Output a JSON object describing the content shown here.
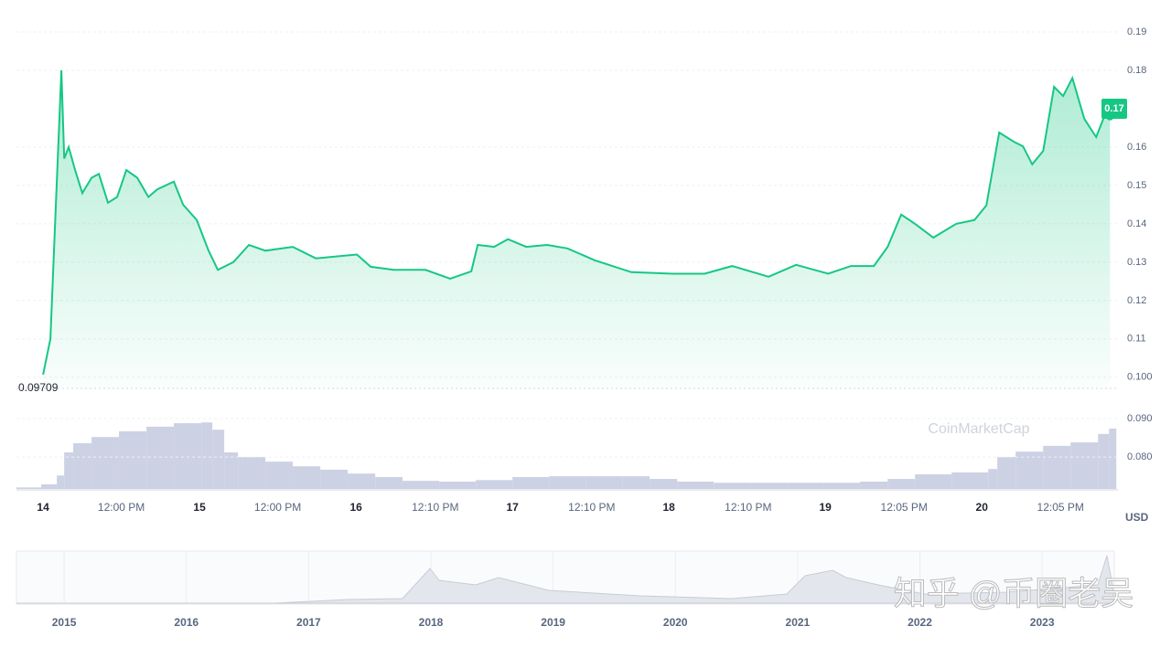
{
  "chart_data": [
    {
      "type": "line",
      "color": "#16c784",
      "x": [
        14.0,
        14.047,
        14.088,
        14.117,
        14.135,
        14.164,
        14.205,
        14.251,
        14.31,
        14.357,
        14.415,
        14.474,
        14.532,
        14.602,
        14.673,
        14.731,
        14.836,
        14.895,
        14.982,
        15.058,
        15.117,
        15.216,
        15.316,
        15.421,
        15.596,
        15.743,
        16.006,
        16.094,
        16.24,
        16.444,
        16.602,
        16.737,
        16.778,
        16.883,
        16.971,
        17.088,
        17.222,
        17.351,
        17.526,
        17.76,
        18.023,
        18.228,
        18.404,
        18.637,
        18.813,
        19.018,
        19.164,
        19.31,
        19.398,
        19.485,
        19.573,
        19.69,
        19.836,
        19.953,
        20.029,
        20.111,
        20.205,
        20.263,
        20.322,
        20.392,
        20.462,
        20.52,
        20.579,
        20.655,
        20.731,
        20.789,
        20.819
      ],
      "values": [
        0.1007,
        0.11,
        0.151,
        0.18,
        0.157,
        0.16,
        0.154,
        0.148,
        0.152,
        0.153,
        0.1455,
        0.147,
        0.154,
        0.152,
        0.147,
        0.149,
        0.151,
        0.145,
        0.141,
        0.133,
        0.128,
        0.13,
        0.1345,
        0.133,
        0.134,
        0.131,
        0.132,
        0.1288,
        0.128,
        0.128,
        0.1257,
        0.1276,
        0.1345,
        0.134,
        0.136,
        0.134,
        0.1345,
        0.1336,
        0.1305,
        0.1274,
        0.127,
        0.127,
        0.129,
        0.1262,
        0.1293,
        0.127,
        0.129,
        0.129,
        0.134,
        0.1424,
        0.14,
        0.1364,
        0.14,
        0.141,
        0.1448,
        0.1638,
        0.1614,
        0.1602,
        0.1555,
        0.159,
        0.1757,
        0.1733,
        0.178,
        0.1674,
        0.1626,
        0.1686,
        0.1679
      ],
      "xlim": [
        13.83,
        20.87
      ],
      "ylim": [
        0.094,
        0.195
      ],
      "yticks": [
        0.19,
        0.18,
        0.16,
        0.15,
        0.14,
        0.13,
        0.12,
        0.11,
        {
          "value": 0.1,
          "label": "0.100"
        }
      ],
      "xticks": [
        14,
        {
          "value": 14.5,
          "label": "12:00 PM"
        },
        15,
        {
          "value": 15.5,
          "label": "12:00 PM"
        },
        16,
        {
          "value": 16.507,
          "label": "12:10 PM"
        },
        17,
        {
          "value": 17.507,
          "label": "12:10 PM"
        },
        18,
        {
          "value": 18.507,
          "label": "12:10 PM"
        },
        19,
        {
          "value": 19.503,
          "label": "12:05 PM"
        },
        20,
        {
          "value": 20.503,
          "label": "12:05 PM"
        }
      ],
      "min_price": 0.09709,
      "current_price": 0.17,
      "currency": "USD",
      "grid": true
    },
    {
      "type": "bar",
      "color": "#cdd1e4",
      "x": [
        13.83,
        13.988,
        14.088,
        14.135,
        14.193,
        14.31,
        14.485,
        14.661,
        14.836,
        15.012,
        15.082,
        15.158,
        15.246,
        15.421,
        15.596,
        15.772,
        15.947,
        16.123,
        16.298,
        16.532,
        16.766,
        17.0,
        17.234,
        17.468,
        17.702,
        17.877,
        18.053,
        18.287,
        18.52,
        18.754,
        18.988,
        19.222,
        19.398,
        19.573,
        19.807,
        20.041,
        20.099,
        20.216,
        20.392,
        20.567,
        20.743,
        20.813
      ],
      "values": [
        0.0721,
        0.0729,
        0.0752,
        0.0812,
        0.0836,
        0.0852,
        0.0867,
        0.0879,
        0.0888,
        0.089,
        0.0871,
        0.0812,
        0.08,
        0.0788,
        0.0776,
        0.0767,
        0.0757,
        0.0748,
        0.0738,
        0.0736,
        0.074,
        0.0748,
        0.075,
        0.075,
        0.075,
        0.0743,
        0.0736,
        0.0733,
        0.0733,
        0.0733,
        0.0733,
        0.0736,
        0.0743,
        0.0755,
        0.076,
        0.0769,
        0.08,
        0.0814,
        0.0829,
        0.0838,
        0.086,
        0.0874
      ],
      "xlim": [
        13.83,
        20.87
      ],
      "ylim": [
        0.0717,
        0.0931
      ],
      "yticks": [
        {
          "value": 0.09,
          "label": "0.090"
        },
        {
          "value": 0.08,
          "label": "0.080"
        }
      ]
    },
    {
      "type": "navigator",
      "xlim": [
        2014.61,
        2023.59
      ],
      "xticks": [
        2015,
        2016,
        2017,
        2018,
        2019,
        2020,
        2021,
        2022,
        2023
      ]
    }
  ],
  "watermark": "CoinMarketCap",
  "overlay_text": "知乎 @币圈老吴"
}
